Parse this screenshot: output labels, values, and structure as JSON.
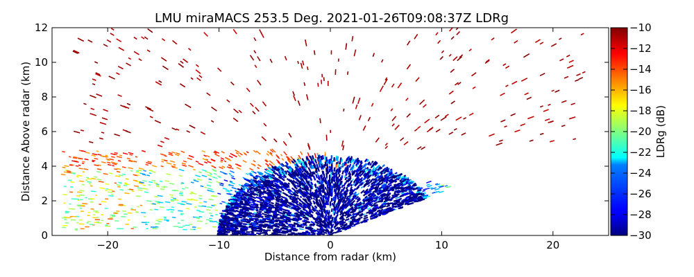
{
  "chart_data": {
    "type": "heatmap",
    "subtype": "radar RHI scan",
    "title": "LMU miraMACS 253.5 Deg. 2021-01-26T09:08:37Z  LDRg",
    "xlabel": "Distance from radar (km)",
    "ylabel": "Distance Above radar  (km)",
    "xlim": [
      -25,
      25
    ],
    "ylim": [
      0,
      12
    ],
    "xticks": [
      -20,
      -10,
      0,
      10,
      20
    ],
    "yticks": [
      0,
      2,
      4,
      6,
      8,
      10,
      12
    ],
    "colorbar": {
      "label": "LDRg (dB)",
      "range": [
        -30,
        -10
      ],
      "ticks": [
        -30,
        -28,
        -26,
        -24,
        -22,
        -20,
        -18,
        -16,
        -14,
        -12,
        -10
      ],
      "colormap": "jet"
    },
    "regions": [
      {
        "name": "dense low-LDR core",
        "x_range": [
          -10,
          10
        ],
        "height_top_km": 4.5,
        "ldr_db": -30
      },
      {
        "name": "melting-layer band",
        "height_km": [
          1,
          5
        ],
        "ldr_db": [
          -24,
          -14
        ]
      },
      {
        "name": "sparse high-LDR echoes above",
        "height_km": [
          5,
          12
        ],
        "ldr_db": -10
      }
    ],
    "grid": false
  }
}
